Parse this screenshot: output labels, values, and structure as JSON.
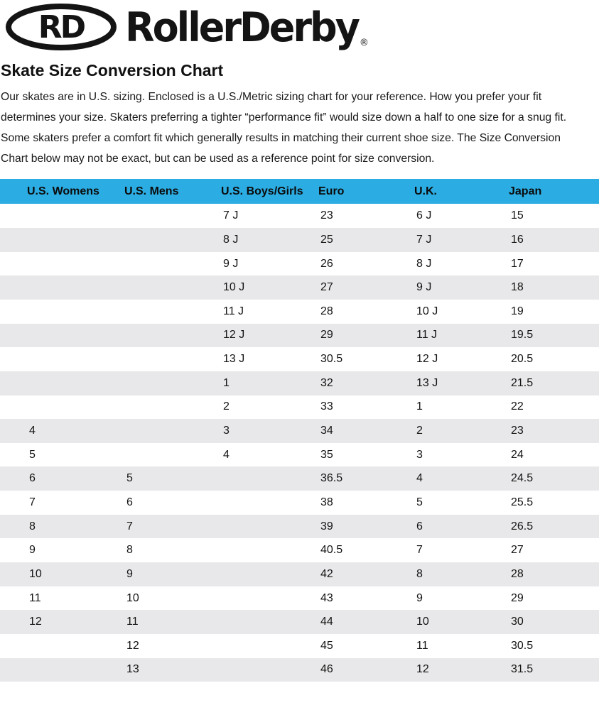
{
  "colors": {
    "header_bg": "#2bace2",
    "row_alt_bg": "#e8e8ea",
    "row_bg": "#ffffff",
    "text": "#111111",
    "logo": "#151415"
  },
  "logo": {
    "badge_text": "RD",
    "wordmark": "RollerDerby",
    "registered_mark": "®"
  },
  "header": {
    "title": "Skate Size Conversion Chart"
  },
  "intro": {
    "text": "Our skates are in U.S. sizing. Enclosed is a U.S./Metric sizing chart for your reference. How you prefer your fit determines your size. Skaters preferring a tighter “performance fit” would size down a half to one size for a snug fit. Some skaters prefer a comfort fit which generally results in matching their current shoe size. The Size Conversion Chart below may not be exact, but can be used as a reference point for size conversion."
  },
  "table": {
    "headers": [
      "U.S. Womens",
      "U.S. Mens",
      "U.S. Boys/Girls",
      "Euro",
      "U.K.",
      "Japan"
    ],
    "rows": [
      [
        "",
        "",
        "7 J",
        "23",
        "6 J",
        "15"
      ],
      [
        "",
        "",
        "8 J",
        "25",
        "7 J",
        "16"
      ],
      [
        "",
        "",
        "9 J",
        "26",
        "8 J",
        "17"
      ],
      [
        "",
        "",
        "10 J",
        "27",
        "9 J",
        "18"
      ],
      [
        "",
        "",
        "11 J",
        "28",
        "10 J",
        "19"
      ],
      [
        "",
        "",
        "12 J",
        "29",
        "11 J",
        "19.5"
      ],
      [
        "",
        "",
        "13 J",
        "30.5",
        "12 J",
        "20.5"
      ],
      [
        "",
        "",
        "1",
        "32",
        "13 J",
        "21.5"
      ],
      [
        "",
        "",
        "2",
        "33",
        "1",
        "22"
      ],
      [
        "4",
        "",
        "3",
        "34",
        "2",
        "23"
      ],
      [
        "5",
        "",
        "4",
        "35",
        "3",
        "24"
      ],
      [
        "6",
        "5",
        "",
        "36.5",
        "4",
        "24.5"
      ],
      [
        "7",
        "6",
        "",
        "38",
        "5",
        "25.5"
      ],
      [
        "8",
        "7",
        "",
        "39",
        "6",
        "26.5"
      ],
      [
        "9",
        "8",
        "",
        "40.5",
        "7",
        "27"
      ],
      [
        "10",
        "9",
        "",
        "42",
        "8",
        "28"
      ],
      [
        "11",
        "10",
        "",
        "43",
        "9",
        "29"
      ],
      [
        "12",
        "11",
        "",
        "44",
        "10",
        "30"
      ],
      [
        "",
        "12",
        "",
        "45",
        "11",
        "30.5"
      ],
      [
        "",
        "13",
        "",
        "46",
        "12",
        "31.5"
      ]
    ]
  }
}
